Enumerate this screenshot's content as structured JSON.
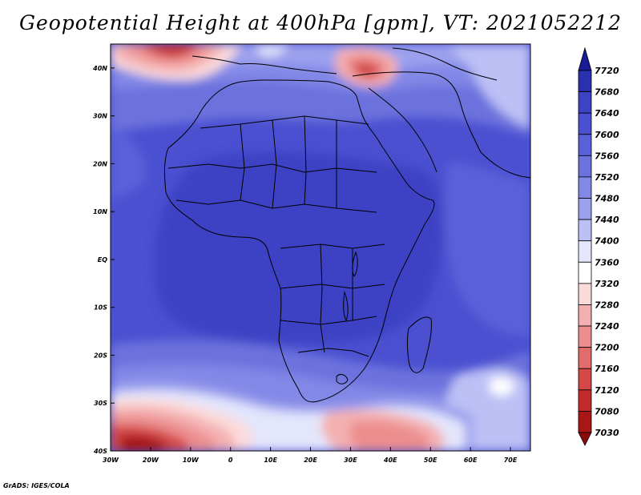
{
  "title": "Geopotential Height at 400hPa [gpm], VT: 2021052212",
  "credit": "GrADS: IGES/COLA",
  "map": {
    "lon_range": [
      -30,
      75
    ],
    "lat_range": [
      -40,
      45
    ],
    "lon_ticks": [
      {
        "value": -30,
        "label": "30W"
      },
      {
        "value": -20,
        "label": "20W"
      },
      {
        "value": -10,
        "label": "10W"
      },
      {
        "value": 0,
        "label": "0"
      },
      {
        "value": 10,
        "label": "10E"
      },
      {
        "value": 20,
        "label": "20E"
      },
      {
        "value": 30,
        "label": "30E"
      },
      {
        "value": 40,
        "label": "40E"
      },
      {
        "value": 50,
        "label": "50E"
      },
      {
        "value": 60,
        "label": "60E"
      },
      {
        "value": 70,
        "label": "70E"
      }
    ],
    "lat_ticks": [
      {
        "value": 40,
        "label": "40N"
      },
      {
        "value": 30,
        "label": "30N"
      },
      {
        "value": 20,
        "label": "20N"
      },
      {
        "value": 10,
        "label": "10N"
      },
      {
        "value": 0,
        "label": "EQ"
      },
      {
        "value": -10,
        "label": "10S"
      },
      {
        "value": -20,
        "label": "20S"
      },
      {
        "value": -30,
        "label": "30S"
      },
      {
        "value": -40,
        "label": "40S"
      }
    ]
  },
  "colorbar": {
    "levels": [
      "7720",
      "7680",
      "7640",
      "7600",
      "7560",
      "7520",
      "7480",
      "7440",
      "7400",
      "7360",
      "7320",
      "7280",
      "7240",
      "7200",
      "7160",
      "7120",
      "7080",
      "7030"
    ],
    "colors": [
      "#181c96",
      "#2a31ae",
      "#3c43c4",
      "#4a50d0",
      "#5a60d8",
      "#6c72dd",
      "#8288e6",
      "#9ca1ee",
      "#bcc0f5",
      "#e4e6fc",
      "#ffffff",
      "#fbdada",
      "#f4b0b0",
      "#ec8e8e",
      "#e06c6c",
      "#d44848",
      "#c32a2a",
      "#a81616",
      "#8a0c0c"
    ]
  }
}
